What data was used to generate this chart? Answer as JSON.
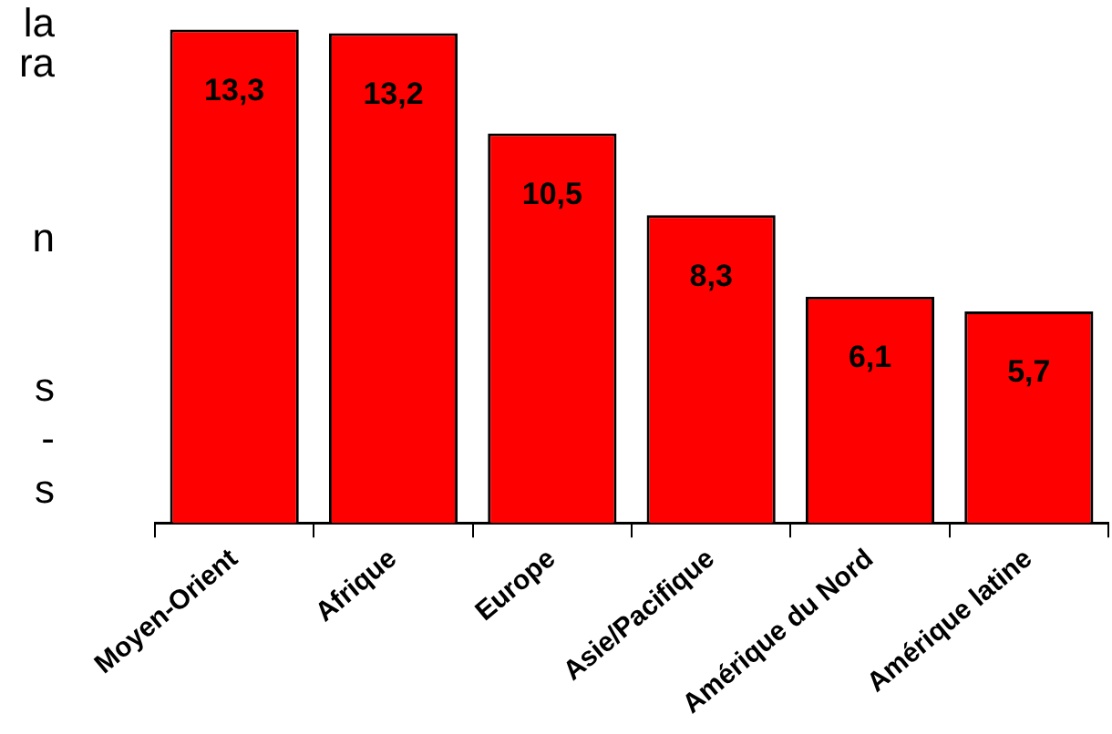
{
  "chart_data": {
    "type": "bar",
    "categories": [
      "Moyen-Orient",
      "Afrique",
      "Europe",
      "Asie/Pacifique",
      "Amérique du Nord",
      "Amérique latine"
    ],
    "values": [
      13.3,
      13.2,
      10.5,
      8.3,
      6.1,
      5.7
    ],
    "value_labels": [
      "13,3",
      "13,2",
      "10,5",
      "8,3",
      "6,1",
      "5,7"
    ],
    "color": "#ff0000",
    "annotations": [
      "la",
      "ra",
      "n",
      "s",
      "-",
      "s"
    ],
    "grid": false,
    "legend": false
  }
}
